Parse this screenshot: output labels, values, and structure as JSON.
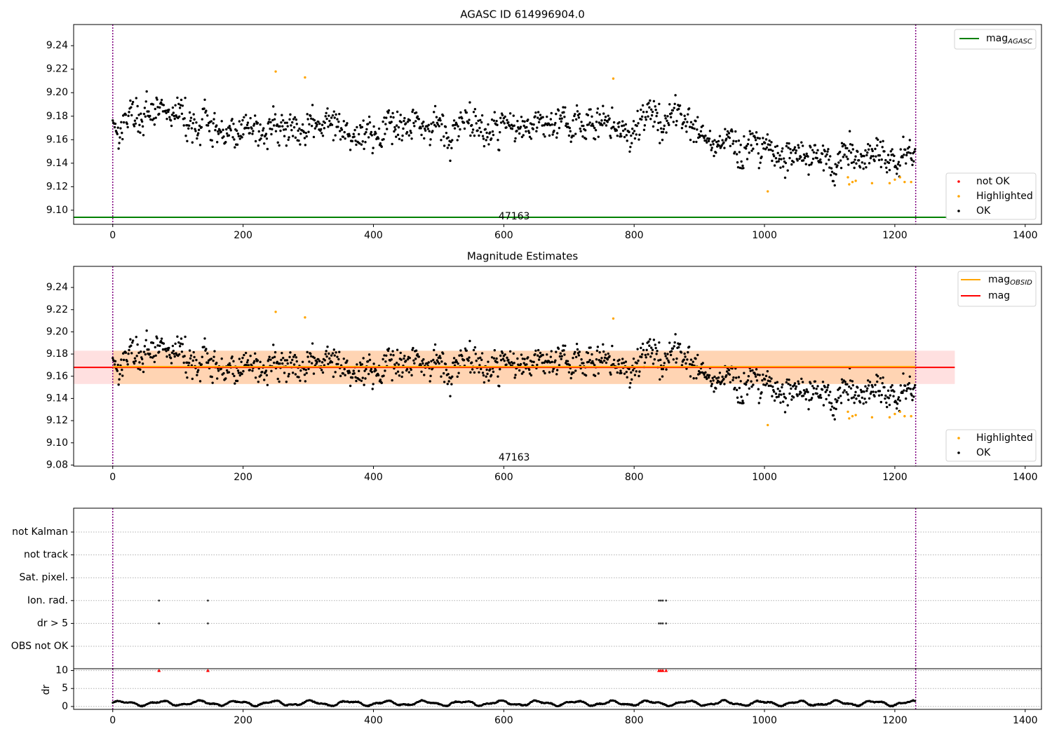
{
  "chart_data": [
    {
      "type": "scatter",
      "title": "AGASC ID 614996904.0",
      "xlim": [
        -60,
        1425
      ],
      "ylim": [
        9.088,
        9.258
      ],
      "x_ticks": [
        0,
        200,
        400,
        600,
        800,
        1000,
        1200,
        1400
      ],
      "y_ticks": [
        9.1,
        9.12,
        9.14,
        9.16,
        9.18,
        9.2,
        9.22,
        9.24
      ],
      "vlines_dotted": [
        0,
        1232
      ],
      "hline": {
        "y": 9.094,
        "color": "#008000"
      },
      "annotation": {
        "text": "47163",
        "x": 616,
        "y": 9.094
      },
      "trend": [
        [
          0,
          9.178
        ],
        [
          200,
          9.172
        ],
        [
          400,
          9.17
        ],
        [
          600,
          9.174
        ],
        [
          750,
          9.174
        ],
        [
          850,
          9.18
        ],
        [
          900,
          9.165
        ],
        [
          1000,
          9.15
        ],
        [
          1100,
          9.15
        ],
        [
          1230,
          9.142
        ]
      ],
      "scatter_seed": 17,
      "scatter_x_max": 1232,
      "scatter_n": 1230,
      "highlighted_points": [
        [
          250,
          9.218
        ],
        [
          295,
          9.213
        ],
        [
          768,
          9.212
        ],
        [
          1005,
          9.116
        ],
        [
          1128,
          9.128
        ],
        [
          1130,
          9.122
        ],
        [
          1135,
          9.124
        ],
        [
          1140,
          9.125
        ],
        [
          1165,
          9.123
        ],
        [
          1192,
          9.123
        ],
        [
          1200,
          9.126
        ],
        [
          1208,
          9.128
        ],
        [
          1215,
          9.124
        ],
        [
          1225,
          9.124
        ]
      ],
      "legend_top": [
        {
          "label": "mag",
          "subscript": "AGASC",
          "color": "#008000",
          "kind": "line"
        }
      ],
      "legend_bottom": [
        {
          "label": "not OK",
          "color": "#ff0000",
          "kind": "dot"
        },
        {
          "label": "Highlighted",
          "color": "#ffa500",
          "kind": "dot"
        },
        {
          "label": "OK",
          "color": "#000000",
          "kind": "dot"
        }
      ]
    },
    {
      "type": "scatter",
      "title": "Magnitude Estimates",
      "xlim": [
        -60,
        1425
      ],
      "ylim": [
        9.079,
        9.259
      ],
      "x_ticks": [
        0,
        200,
        400,
        600,
        800,
        1000,
        1200,
        1400
      ],
      "y_ticks": [
        9.08,
        9.1,
        9.12,
        9.14,
        9.16,
        9.18,
        9.2,
        9.22,
        9.24
      ],
      "vlines_dotted": [
        0,
        1232
      ],
      "mag_line": {
        "y": 9.168,
        "x_range": [
          -60,
          1292
        ],
        "color": "#ff0000",
        "band": [
          9.153,
          9.183
        ]
      },
      "mag_obsid_line": {
        "y": 9.168,
        "x_range": [
          0,
          1232
        ],
        "color": "#ffa500",
        "band": [
          9.153,
          9.183
        ]
      },
      "annotation": {
        "text": "47163",
        "x": 616,
        "y": 9.086
      },
      "legend_top": [
        {
          "label": "mag",
          "subscript": "OBSID",
          "color": "#ffa500",
          "kind": "line"
        },
        {
          "label": "mag",
          "subscript": "",
          "color": "#ff0000",
          "kind": "line"
        }
      ],
      "legend_bottom": [
        {
          "label": "Highlighted",
          "color": "#ffa500",
          "kind": "dot"
        },
        {
          "label": "OK",
          "color": "#000000",
          "kind": "dot"
        }
      ]
    },
    {
      "type": "scatter",
      "title": "",
      "xlim": [
        -60,
        1425
      ],
      "x_ticks": [
        0,
        200,
        400,
        600,
        800,
        1000,
        1200,
        1400
      ],
      "vlines_dotted": [
        0,
        1232
      ],
      "flag_categories": [
        "not Kalman",
        "not track",
        "Sat. pixel.",
        "Ion. rad.",
        "dr > 5",
        "OBS not OK"
      ],
      "flag_points": {
        "Ion. rad.": [
          71,
          146,
          838,
          841,
          844,
          849
        ],
        "dr > 5": [
          71,
          146,
          838,
          841,
          844,
          849
        ]
      }
    },
    {
      "type": "scatter",
      "title": "",
      "ylabel": "dr",
      "xlim": [
        -60,
        1425
      ],
      "ylim": [
        -0.8,
        10.5
      ],
      "x_ticks": [
        0,
        200,
        400,
        600,
        800,
        1000,
        1200,
        1400
      ],
      "y_ticks": [
        0,
        5,
        10
      ],
      "vlines_dotted": [
        0,
        1232
      ],
      "clipped_points": [
        71,
        146,
        838,
        841,
        844,
        849
      ],
      "clipped_value": 10,
      "dr_seed": 5
    }
  ]
}
